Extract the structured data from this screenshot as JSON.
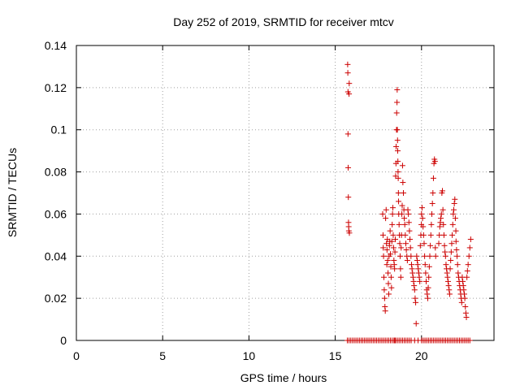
{
  "chart_data": {
    "type": "scatter",
    "title": "Day 252 of 2019, SRMTID for receiver mtcv",
    "xlabel": "GPS time / hours",
    "ylabel": "SRMTID / TECUs",
    "xlim": [
      0,
      24.2
    ],
    "ylim": [
      0,
      0.14
    ],
    "x_ticks": [
      0,
      5,
      10,
      15,
      20
    ],
    "y_ticks": [
      0,
      0.02,
      0.04,
      0.06,
      0.08,
      0.1,
      0.12,
      0.14
    ],
    "x_tick_labels": [
      "0",
      "5",
      "10",
      "15",
      "20"
    ],
    "y_tick_labels": [
      "0",
      "0.02",
      "0.04",
      "0.06",
      "0.08",
      "0.1",
      "0.12",
      "0.14"
    ],
    "grid": true,
    "legend": "none",
    "marker": "plus",
    "color": "#cc0000",
    "series": [
      {
        "x": [
          15.72,
          15.73,
          15.74,
          15.74,
          15.75,
          15.76,
          15.77,
          15.78,
          15.79,
          15.8,
          15.81,
          15.82,
          17.75,
          17.77,
          17.78,
          17.8,
          17.82,
          17.84,
          17.86,
          17.88,
          17.9,
          17.92,
          17.95,
          17.97,
          17.99,
          18.0,
          18.02,
          18.04,
          18.06,
          18.08,
          18.1,
          18.12,
          18.14,
          18.16,
          18.18,
          18.2,
          18.22,
          18.24,
          18.26,
          18.28,
          18.3,
          18.32,
          18.34,
          18.36,
          18.38,
          18.4,
          18.42,
          18.44,
          18.46,
          18.48,
          18.5,
          18.52,
          18.53,
          18.55,
          18.56,
          18.58,
          18.59,
          18.6,
          18.61,
          18.62,
          18.63,
          18.64,
          18.65,
          18.66,
          18.67,
          18.68,
          18.7,
          18.72,
          18.74,
          18.76,
          18.78,
          18.8,
          18.82,
          18.84,
          18.86,
          18.88,
          18.9,
          18.92,
          18.95,
          18.98,
          19.0,
          19.03,
          19.06,
          19.09,
          19.12,
          19.15,
          19.18,
          19.21,
          19.24,
          19.27,
          19.3,
          19.33,
          19.36,
          19.39,
          19.42,
          19.45,
          19.48,
          19.51,
          19.54,
          19.57,
          19.6,
          19.63,
          19.66,
          19.69,
          19.72,
          19.75,
          19.78,
          19.81,
          19.84,
          19.87,
          19.9,
          19.93,
          19.96,
          19.99,
          20.0,
          20.03,
          20.06,
          20.09,
          20.12,
          20.15,
          20.18,
          20.21,
          20.24,
          20.27,
          20.3,
          20.33,
          20.36,
          20.39,
          20.42,
          20.45,
          20.48,
          20.51,
          20.54,
          20.57,
          20.6,
          20.63,
          20.66,
          20.69,
          20.72,
          20.75,
          20.78,
          20.8,
          20.82,
          21.0,
          21.03,
          21.06,
          21.09,
          21.12,
          21.15,
          21.18,
          21.21,
          21.24,
          21.27,
          21.3,
          21.33,
          21.36,
          21.39,
          21.42,
          21.45,
          21.48,
          21.51,
          21.54,
          21.57,
          21.6,
          21.63,
          21.66,
          21.69,
          21.72,
          21.75,
          21.78,
          21.81,
          21.84,
          21.87,
          21.9,
          21.93,
          21.96,
          21.99,
          22.0,
          22.03,
          22.06,
          22.09,
          22.12,
          22.15,
          22.18,
          22.21,
          22.24,
          22.27,
          22.3,
          22.33,
          22.36,
          22.39,
          22.42,
          22.45,
          22.48,
          22.51,
          22.54,
          22.57,
          22.6,
          22.63,
          22.66,
          22.7,
          22.75,
          22.8,
          22.85
        ],
        "y": [
          0.131,
          0.127,
          0.118,
          0.098,
          0.082,
          0.068,
          0.056,
          0.054,
          0.052,
          0.117,
          0.122,
          0.051,
          0.06,
          0.05,
          0.044,
          0.04,
          0.03,
          0.024,
          0.02,
          0.016,
          0.014,
          0.058,
          0.062,
          0.046,
          0.036,
          0.043,
          0.048,
          0.038,
          0.032,
          0.027,
          0.022,
          0.04,
          0.045,
          0.047,
          0.052,
          0.041,
          0.035,
          0.03,
          0.025,
          0.047,
          0.055,
          0.06,
          0.063,
          0.05,
          0.044,
          0.038,
          0.036,
          0.034,
          0.042,
          0.048,
          0.078,
          0.084,
          0.092,
          0.1,
          0.108,
          0.113,
          0.119,
          0.1,
          0.095,
          0.09,
          0.085,
          0.08,
          0.077,
          0.07,
          0.066,
          0.06,
          0.055,
          0.05,
          0.046,
          0.04,
          0.034,
          0.03,
          0.044,
          0.05,
          0.06,
          0.064,
          0.083,
          0.075,
          0.07,
          0.062,
          0.058,
          0.055,
          0.05,
          0.046,
          0.043,
          0.04,
          0.038,
          0.062,
          0.06,
          0.056,
          0.052,
          0.048,
          0.044,
          0.04,
          0.036,
          0.034,
          0.032,
          0.03,
          0.028,
          0.026,
          0.024,
          0.02,
          0.018,
          0.008,
          0.04,
          0.038,
          0.036,
          0.034,
          0.032,
          0.03,
          0.028,
          0.045,
          0.05,
          0.055,
          0.06,
          0.063,
          0.058,
          0.054,
          0.05,
          0.046,
          0.04,
          0.036,
          0.032,
          0.028,
          0.024,
          0.022,
          0.02,
          0.025,
          0.03,
          0.035,
          0.04,
          0.045,
          0.05,
          0.055,
          0.06,
          0.065,
          0.07,
          0.077,
          0.084,
          0.086,
          0.085,
          0.044,
          0.04,
          0.046,
          0.05,
          0.054,
          0.056,
          0.058,
          0.06,
          0.07,
          0.071,
          0.062,
          0.055,
          0.05,
          0.045,
          0.042,
          0.04,
          0.036,
          0.034,
          0.032,
          0.03,
          0.028,
          0.026,
          0.024,
          0.022,
          0.034,
          0.038,
          0.042,
          0.046,
          0.05,
          0.055,
          0.06,
          0.062,
          0.065,
          0.067,
          0.058,
          0.052,
          0.047,
          0.043,
          0.04,
          0.036,
          0.032,
          0.03,
          0.028,
          0.026,
          0.024,
          0.022,
          0.02,
          0.018,
          0.03,
          0.028,
          0.026,
          0.024,
          0.022,
          0.02,
          0.016,
          0.013,
          0.011,
          0.03,
          0.033,
          0.036,
          0.04,
          0.044,
          0.048
        ]
      },
      {
        "x": [
          15.7,
          15.8,
          15.9,
          16.0,
          16.1,
          16.2,
          16.3,
          16.4,
          16.5,
          16.6,
          16.7,
          16.8,
          16.9,
          17.0,
          17.1,
          17.2,
          17.3,
          17.4,
          17.5,
          17.6,
          17.7,
          17.8,
          17.9,
          18.0,
          18.1,
          18.2,
          18.3,
          18.4,
          18.45,
          18.5,
          18.6,
          18.7,
          18.8,
          18.9,
          19.0,
          19.1,
          19.2,
          19.3,
          19.4,
          19.6,
          19.8,
          20.0,
          20.1,
          20.2,
          20.3,
          20.4,
          20.5,
          20.6,
          20.7,
          20.8,
          20.9,
          21.0,
          21.1,
          21.2,
          21.3,
          21.4,
          21.5,
          21.6,
          21.7,
          21.8,
          21.9,
          22.0,
          22.1,
          22.2,
          22.3,
          22.4,
          22.5,
          22.6,
          22.7,
          22.8
        ],
        "y": [
          0,
          0,
          0,
          0,
          0,
          0,
          0,
          0,
          0,
          0,
          0,
          0,
          0,
          0,
          0,
          0,
          0,
          0,
          0,
          0,
          0,
          0,
          0,
          0,
          0,
          0,
          0,
          0,
          0,
          0,
          0,
          0,
          0,
          0,
          0,
          0,
          0,
          0,
          0,
          0,
          0,
          0,
          0,
          0,
          0,
          0,
          0,
          0,
          0,
          0,
          0,
          0,
          0,
          0,
          0,
          0,
          0,
          0,
          0,
          0,
          0,
          0,
          0,
          0,
          0,
          0,
          0,
          0,
          0,
          0
        ]
      }
    ]
  }
}
